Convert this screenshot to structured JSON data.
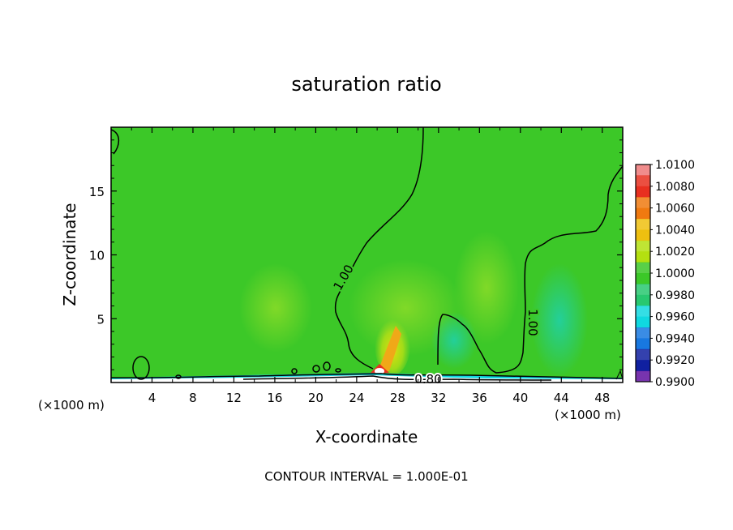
{
  "chart_data": {
    "type": "heatmap",
    "title": "saturation ratio",
    "xlabel": "X-coordinate",
    "ylabel": "Z-coordinate",
    "x_units_left": "(×1000 m)",
    "x_units_right": "(×1000 m)",
    "xlim": [
      0,
      50
    ],
    "ylim": [
      0,
      20
    ],
    "x_ticks": [
      4,
      8,
      12,
      16,
      20,
      24,
      28,
      32,
      36,
      40,
      44,
      48
    ],
    "y_ticks": [
      5,
      10,
      15
    ],
    "footer": "CONTOUR INTERVAL = 1.000E-01",
    "contour_labels": [
      {
        "text": "1.00",
        "x": 24.0,
        "z": 8.5
      },
      {
        "text": "1.00",
        "x": 40.5,
        "z": 5.0
      },
      {
        "text": "0.80",
        "x": 30.5,
        "z": 0.3
      }
    ],
    "colorbar": {
      "levels": [
        "1.0100",
        "1.0080",
        "1.0060",
        "1.0040",
        "1.0020",
        "1.0000",
        "0.9980",
        "0.9960",
        "0.9940",
        "0.9920",
        "0.9900"
      ],
      "colors": [
        "#f08c8c",
        "#e83020",
        "#f07a10",
        "#eec010",
        "#b4e010",
        "#3cc828",
        "#28c870",
        "#10d8e0",
        "#1878e0",
        "#1020a0",
        "#6010a0"
      ]
    },
    "colors": {
      "field": "#3cc828",
      "light_green": "#78d628",
      "cyan_green": "#2ed296",
      "surface": "#ffffff"
    }
  }
}
